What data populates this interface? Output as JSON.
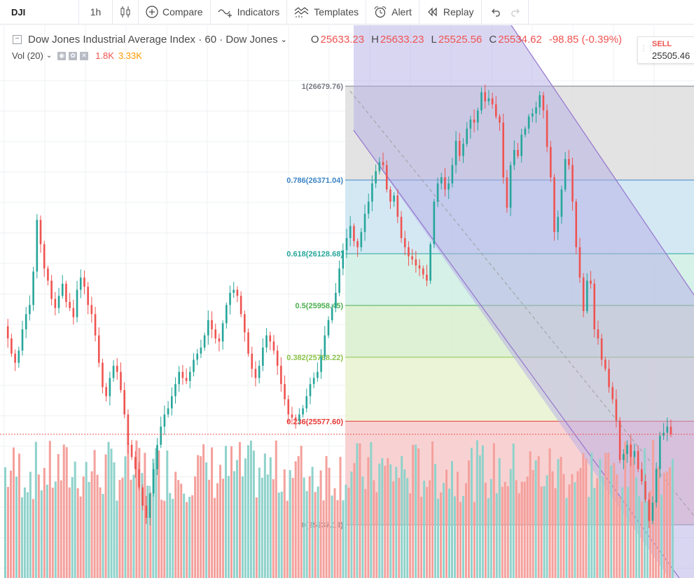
{
  "toolbar": {
    "symbol": "DJI",
    "interval": "1h",
    "compare_label": "Compare",
    "indicators_label": "Indicators",
    "templates_label": "Templates",
    "alert_label": "Alert",
    "replay_label": "Replay"
  },
  "legend": {
    "title": "Dow Jones Industrial Average Index · 60 · Dow Jones",
    "open_key": "O",
    "open": "25633.23",
    "high_key": "H",
    "high": "25633.23",
    "low_key": "L",
    "low": "25525.56",
    "close_key": "C",
    "close": "25534.62",
    "change": "-98.85 (-0.39%)"
  },
  "volume": {
    "label": "Vol (20)",
    "value1": "1.8K",
    "value2": "3.33K"
  },
  "sell": {
    "label": "SELL",
    "price": "25505.46"
  },
  "fib_levels": [
    {
      "label": "1(26679.76)",
      "price": 26679.76,
      "color": "#787b86",
      "zone": "#e0e0e0"
    },
    {
      "label": "0.786(26371.04)",
      "price": 26371.04,
      "color": "#3d85c6",
      "zone": "#cfe5f3"
    },
    {
      "label": "0.618(26128.68)",
      "price": 26128.68,
      "color": "#26a69a",
      "zone": "#d1f0e6"
    },
    {
      "label": "0.5(25958.45)",
      "price": 25958.45,
      "color": "#4caf50",
      "zone": "#dcf0d0"
    },
    {
      "label": "0.382(25788.22)",
      "price": 25788.22,
      "color": "#8bc34a",
      "zone": "#eaf3d3"
    },
    {
      "label": "0.236(25577.60)",
      "price": 25577.6,
      "color": "#e53935",
      "zone": "#f7cdcd"
    },
    {
      "label": "0(25237.14)",
      "price": 25237.14,
      "color": "#787b86",
      "zone": ""
    }
  ],
  "colors": {
    "up": "#26a69a",
    "down": "#ef5350",
    "vol_up": "#8fd2cb",
    "vol_down": "#f4a09c",
    "channel_fill": "#b3aee6",
    "channel_line": "#9575cd"
  },
  "chart_data": {
    "type": "candlestick",
    "symbol": "DJI",
    "interval": "60",
    "close_path": [
      25890,
      25850,
      25800,
      25770,
      25810,
      25880,
      25930,
      25960,
      26070,
      26240,
      26160,
      26080,
      26040,
      25980,
      25950,
      25990,
      26030,
      25970,
      25950,
      25920,
      26010,
      26050,
      26020,
      25960,
      25930,
      25860,
      25770,
      25690,
      25660,
      25720,
      25760,
      25740,
      25680,
      25600,
      25500,
      25460,
      25420,
      25360,
      25300,
      25260,
      25340,
      25420,
      25500,
      25560,
      25600,
      25620,
      25660,
      25700,
      25740,
      25720,
      25710,
      25740,
      25780,
      25800,
      25820,
      25860,
      25910,
      25880,
      25850,
      25840,
      25900,
      25960,
      26000,
      26010,
      25990,
      25930,
      25870,
      25800,
      25750,
      25720,
      25760,
      25820,
      25860,
      25840,
      25810,
      25760,
      25700,
      25650,
      25600,
      25590,
      25580,
      25600,
      25620,
      25660,
      25700,
      25720,
      25740,
      25790,
      25860,
      25910,
      25950,
      26000,
      26080,
      26140,
      26180,
      26220,
      26170,
      26150,
      26200,
      26260,
      26300,
      26360,
      26400,
      26430,
      26420,
      26340,
      26300,
      26320,
      26250,
      26180,
      26150,
      26120,
      26110,
      26090,
      26080,
      26060,
      26040,
      26160,
      26300,
      26360,
      26380,
      26340,
      26360,
      26420,
      26500,
      26450,
      26490,
      26540,
      26570,
      26560,
      26600,
      26660,
      26630,
      26640,
      26620,
      26580,
      26560,
      26380,
      26280,
      26420,
      26470,
      26450,
      26520,
      26540,
      26580,
      26590,
      26610,
      26650,
      26600,
      26480,
      26380,
      26200,
      26250,
      26340,
      26440,
      26420,
      26300,
      26150,
      26050,
      25940,
      26040,
      26030,
      25880,
      25850,
      25780,
      25750,
      25690,
      25650,
      25580,
      25450,
      25470,
      25500,
      25460,
      25480,
      25420,
      25380,
      25320,
      25250,
      25310,
      25420,
      25530,
      25540,
      25560,
      25534.62
    ],
    "volume_bar_count": 240
  }
}
